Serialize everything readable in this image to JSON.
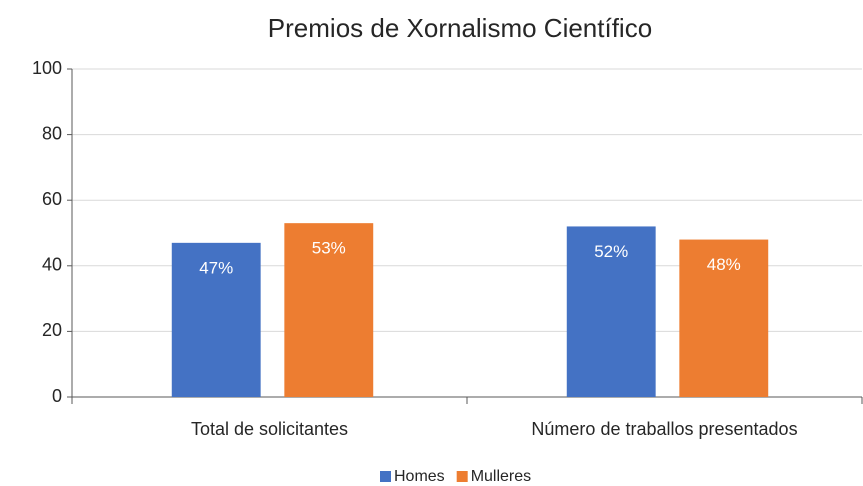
{
  "chart_data": {
    "type": "bar",
    "title": "Premios de Xornalismo Científico",
    "categories": [
      "Total de solicitantes",
      "Número de traballos presentados"
    ],
    "series": [
      {
        "name": "Homes",
        "color": "#4472c4",
        "values": [
          47,
          52
        ],
        "value_labels": [
          "47%",
          "52%"
        ]
      },
      {
        "name": "Mulleres",
        "color": "#ed7d31",
        "values": [
          53,
          48
        ],
        "value_labels": [
          "53%",
          "48%"
        ]
      }
    ],
    "ylim": [
      0,
      100
    ],
    "yticks": [
      0,
      20,
      40,
      60,
      80,
      100
    ],
    "grid": true,
    "legend": "bottom"
  }
}
